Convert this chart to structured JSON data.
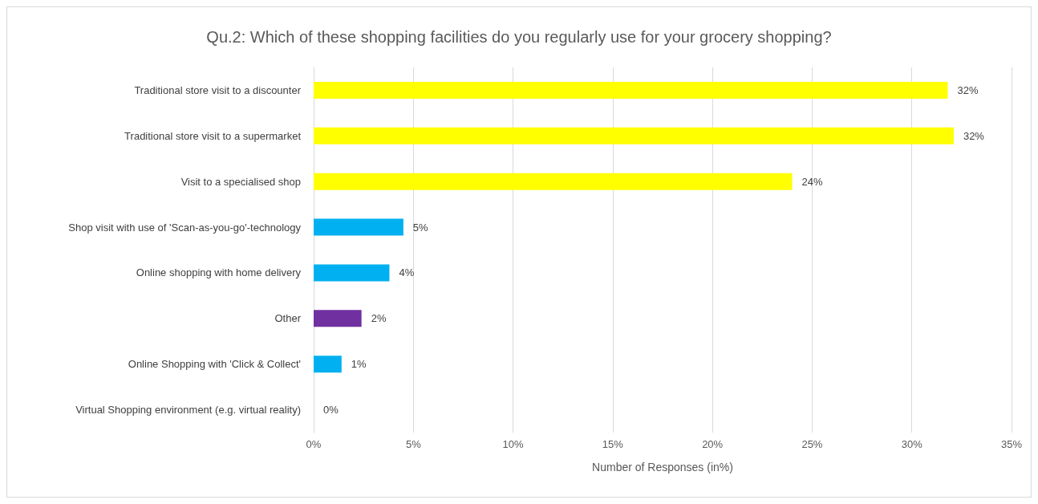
{
  "chart_data": {
    "type": "bar",
    "orientation": "horizontal",
    "title": "Qu.2: Which of these shopping facilities do you regularly use for your grocery shopping?",
    "xlabel": "Number of Responses (in%)",
    "categories": [
      "Traditional store visit to a discounter",
      "Traditional store visit to a supermarket",
      "Visit to a specialised shop",
      "Shop visit with use of 'Scan-as-you-go'-technology",
      "Online shopping with home delivery",
      "Other",
      "Online Shopping with 'Click & Collect'",
      "Virtual Shopping environment (e.g. virtual reality)"
    ],
    "values": [
      31.8,
      32.1,
      24.0,
      4.5,
      3.8,
      2.4,
      1.4,
      0
    ],
    "colors": [
      "#ffff00",
      "#ffff00",
      "#ffff00",
      "#00b0f0",
      "#00b0f0",
      "#7030a0",
      "#00b0f0",
      "#00b0f0"
    ],
    "value_labels": [
      "32%",
      "32%",
      "24%",
      "5%",
      "4%",
      "2%",
      "1%",
      "0%"
    ],
    "xlim": [
      0,
      35
    ],
    "xticks": [
      {
        "value": 0,
        "label": "0%"
      },
      {
        "value": 5,
        "label": "5%"
      },
      {
        "value": 10,
        "label": "10%"
      },
      {
        "value": 15,
        "label": "15%"
      },
      {
        "value": 20,
        "label": "20%"
      },
      {
        "value": 25,
        "label": "25%"
      },
      {
        "value": 30,
        "label": "30%"
      },
      {
        "value": 35,
        "label": "35%"
      }
    ],
    "grid": "x"
  }
}
